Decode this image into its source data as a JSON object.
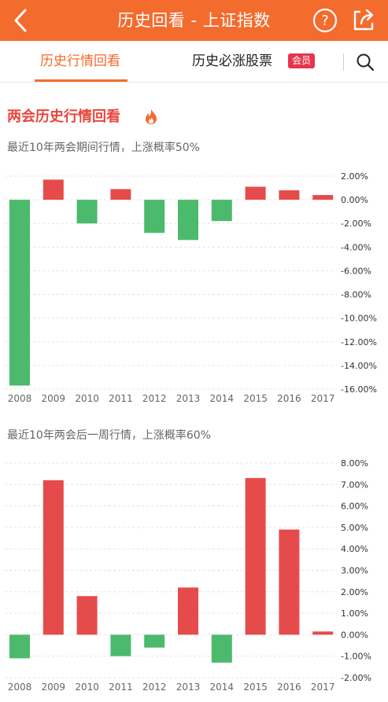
{
  "header": {
    "title": "历史回看 - 上证指数",
    "back_icon": "chevron-left-icon",
    "help_icon": "question-circle-icon",
    "share_icon": "share-icon",
    "background": "#f46b2e"
  },
  "tabs": {
    "active": "历史行情回看",
    "second": "历史必涨股票",
    "badge": "会员",
    "search_icon": "search-icon"
  },
  "section": {
    "title": "两会历史行情回看",
    "title_icon": "flame-icon"
  },
  "colors": {
    "up": "#e64b4b",
    "down": "#4cba6c",
    "accent": "#f46b2e"
  },
  "chart_data": [
    {
      "type": "bar",
      "title": "最近10年两会期间行情，上涨概率50%",
      "categories": [
        "2008",
        "2009",
        "2010",
        "2011",
        "2012",
        "2013",
        "2014",
        "2015",
        "2016",
        "2017"
      ],
      "values": [
        -15.7,
        1.7,
        -2.0,
        0.9,
        -2.8,
        -3.4,
        -1.8,
        1.1,
        0.8,
        0.4
      ],
      "ylim": [
        -16,
        2
      ],
      "yticks": [
        2,
        0,
        -2,
        -4,
        -6,
        -8,
        -10,
        -12,
        -14,
        -16
      ],
      "ytick_labels": [
        "2.00%",
        "0.00%",
        "-2.00%",
        "-4.00%",
        "-6.00%",
        "-8.00%",
        "-10.00%",
        "-12.00%",
        "-14.00%",
        "-16.00%"
      ],
      "grid": true,
      "y_axis_side": "right"
    },
    {
      "type": "bar",
      "title": "最近10年两会后一周行情，上涨概率60%",
      "categories": [
        "2008",
        "2009",
        "2010",
        "2011",
        "2012",
        "2013",
        "2014",
        "2015",
        "2016",
        "2017"
      ],
      "values": [
        -1.1,
        7.2,
        1.8,
        -1.0,
        -0.6,
        2.2,
        -1.3,
        7.3,
        4.9,
        0.15
      ],
      "ylim": [
        -2,
        8
      ],
      "yticks": [
        8,
        7,
        6,
        5,
        4,
        3,
        2,
        1,
        0,
        -1,
        -2
      ],
      "ytick_labels": [
        "8.00%",
        "7.00%",
        "6.00%",
        "5.00%",
        "4.00%",
        "3.00%",
        "2.00%",
        "1.00%",
        "0.00%",
        "-1.00%",
        "-2.00%"
      ],
      "grid": true,
      "y_axis_side": "right"
    }
  ]
}
